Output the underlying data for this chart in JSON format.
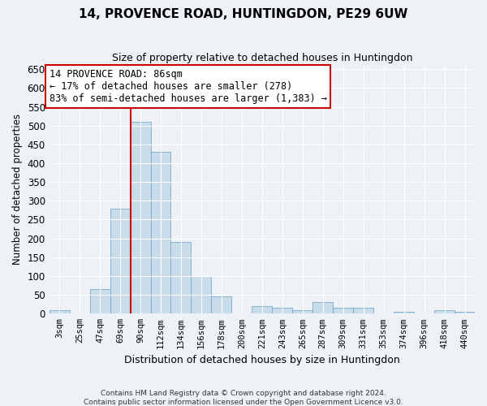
{
  "title": "14, PROVENCE ROAD, HUNTINGDON, PE29 6UW",
  "subtitle": "Size of property relative to detached houses in Huntingdon",
  "xlabel": "Distribution of detached houses by size in Huntingdon",
  "ylabel": "Number of detached properties",
  "footer_line1": "Contains HM Land Registry data © Crown copyright and database right 2024.",
  "footer_line2": "Contains public sector information licensed under the Open Government Licence v3.0.",
  "annotation_line1": "14 PROVENCE ROAD: 86sqm",
  "annotation_line2": "← 17% of detached houses are smaller (278)",
  "annotation_line3": "83% of semi-detached houses are larger (1,383) →",
  "bar_color": "#c8dcea",
  "bar_edge_color": "#7aaac8",
  "vline_color": "#cc0000",
  "background_color": "#eef2f7",
  "annotation_box_color": "#ffffff",
  "annotation_box_edge": "#cc0000",
  "grid_color": "#ffffff",
  "categories": [
    "3sqm",
    "25sqm",
    "47sqm",
    "69sqm",
    "90sqm",
    "112sqm",
    "134sqm",
    "156sqm",
    "178sqm",
    "200sqm",
    "221sqm",
    "243sqm",
    "265sqm",
    "287sqm",
    "309sqm",
    "331sqm",
    "353sqm",
    "374sqm",
    "396sqm",
    "418sqm",
    "440sqm"
  ],
  "values": [
    10,
    0,
    65,
    280,
    510,
    430,
    190,
    100,
    45,
    0,
    20,
    15,
    10,
    30,
    15,
    15,
    0,
    5,
    0,
    10,
    5
  ],
  "ylim": [
    0,
    660
  ],
  "yticks": [
    0,
    50,
    100,
    150,
    200,
    250,
    300,
    350,
    400,
    450,
    500,
    550,
    600,
    650
  ],
  "vline_x": 3.5,
  "figsize": [
    6.0,
    5.0
  ],
  "dpi": 100
}
